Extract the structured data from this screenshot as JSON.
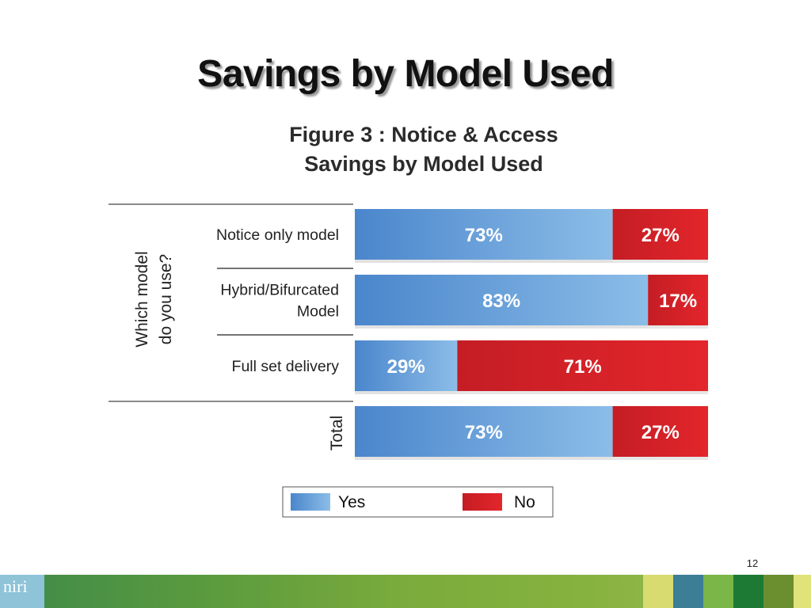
{
  "slide": {
    "title": "Savings by Model Used",
    "page_number": "12",
    "footer_logo": "niri"
  },
  "colors": {
    "yes": "#4f8fd6",
    "no": "#d42a2a",
    "footer_green": "#6ea53f"
  },
  "chart_data": {
    "type": "bar",
    "orientation": "horizontal",
    "stacked": "100%",
    "title_lines": [
      "Figure 3 : Notice & Access",
      "Savings by Model Used"
    ],
    "group_labels": [
      {
        "lines": [
          "Which model",
          "do you use?"
        ],
        "rows": [
          0,
          1,
          2
        ]
      },
      {
        "lines": [
          "Total"
        ],
        "rows": [
          3
        ]
      }
    ],
    "categories": [
      [
        "Notice only model"
      ],
      [
        "Hybrid/Bifurcated",
        "Model"
      ],
      [
        "Full set delivery"
      ],
      [
        ""
      ]
    ],
    "series": [
      {
        "name": "Yes",
        "values": [
          73,
          83,
          29,
          73
        ],
        "labels": [
          "73%",
          "83%",
          "29%",
          "73%"
        ]
      },
      {
        "name": "No",
        "values": [
          27,
          17,
          71,
          27
        ],
        "labels": [
          "27%",
          "17%",
          "71%",
          "27%"
        ]
      }
    ],
    "xlim": [
      0,
      100
    ],
    "legend_position": "bottom"
  }
}
